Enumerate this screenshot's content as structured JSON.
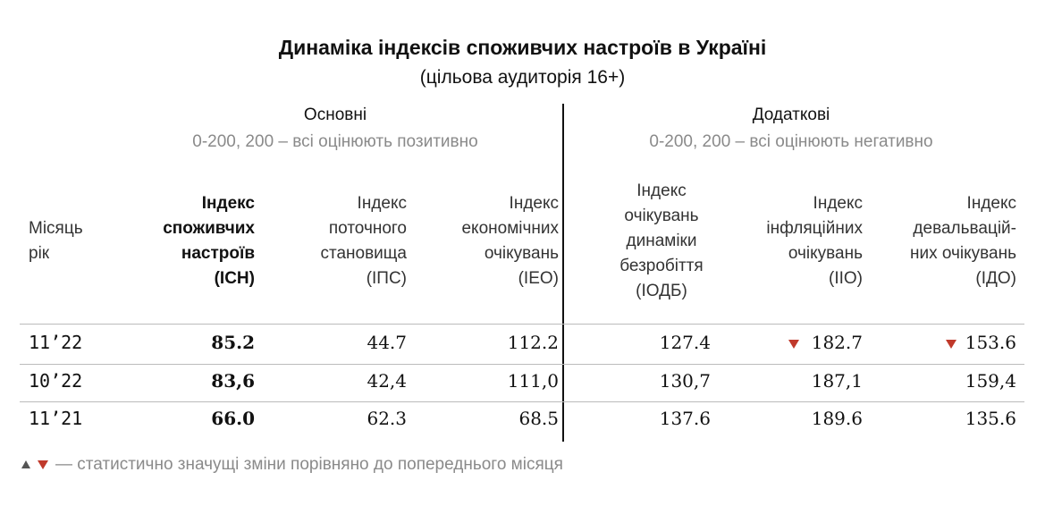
{
  "title": "Динаміка індексів споживчих настроїв в Україні",
  "subtitle": "(цільова аудиторія 16+)",
  "groups": [
    {
      "title": "Основні",
      "scale": "0-200, 200 – всі оцінюють позитивно"
    },
    {
      "title": "Додаткові",
      "scale": "0-200, 200 – всі оцінюють негативно"
    }
  ],
  "table": {
    "headers": [
      [
        "Місяць",
        "рік"
      ],
      [
        "Індекс",
        "споживчих",
        "настроїв",
        "(ІСН)"
      ],
      [
        "Індекс",
        "поточного",
        "становища",
        "(ІПС)"
      ],
      [
        "Індекс",
        "економічних",
        "очікувань",
        "(ІЕО)"
      ],
      [
        "Індекс",
        "очікувань",
        "динаміки",
        "безробіття",
        "(ІОДБ)"
      ],
      [
        "Індекс",
        "інфляційних",
        "очікувань",
        "(ІІО)"
      ],
      [
        "Індекс",
        "девальвацій-",
        "них очікувань",
        "(ІДО)"
      ]
    ],
    "rows": [
      [
        "11’22",
        "85.2",
        "44.7",
        "112.2",
        "127.4",
        "182.7",
        "153.6"
      ],
      [
        "10’22",
        "83,6",
        "42,4",
        "111,0",
        "130,7",
        "187,1",
        "159,4"
      ],
      [
        "11’21",
        "66.0",
        "62.3",
        "68.5",
        "137.6",
        "189.6",
        "135.6"
      ]
    ]
  },
  "legend": "— статистично значущі зміни порівняно до попереднього місяця"
}
